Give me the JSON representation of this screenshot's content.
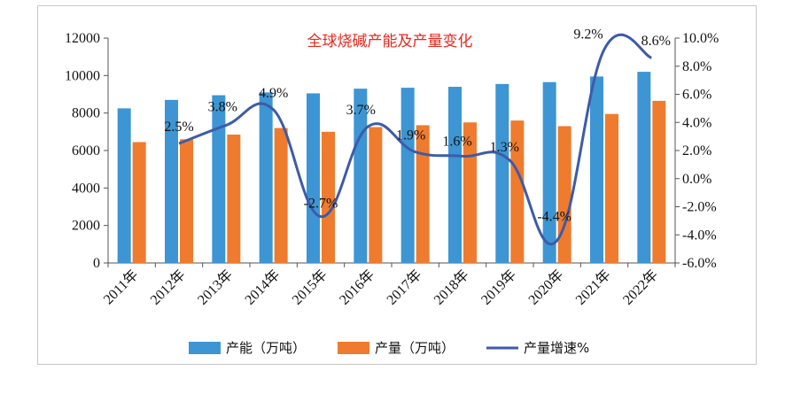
{
  "chart_data": {
    "type": "bar",
    "title": "全球烧碱产能及产量变化",
    "categories": [
      "2011年",
      "2012年",
      "2013年",
      "2014年",
      "2015年",
      "2016年",
      "2017年",
      "2018年",
      "2019年",
      "2020年",
      "2021年",
      "2022年"
    ],
    "series": [
      {
        "name": "产能（万吨）",
        "type": "bar",
        "axis": "left",
        "color": "#3d95d3",
        "values": [
          8250,
          8700,
          8950,
          9100,
          9050,
          9300,
          9350,
          9400,
          9550,
          9650,
          9950,
          10200
        ]
      },
      {
        "name": "产量（万吨）",
        "type": "bar",
        "axis": "left",
        "color": "#ef7b2e",
        "values": [
          6450,
          6600,
          6850,
          7200,
          7000,
          7250,
          7350,
          7500,
          7600,
          7300,
          7950,
          8650
        ]
      },
      {
        "name": "产量增速%",
        "type": "line",
        "axis": "right",
        "color": "#3d5ba8",
        "values": [
          null,
          2.5,
          3.8,
          4.9,
          -2.7,
          3.7,
          1.9,
          1.6,
          1.3,
          -4.4,
          9.2,
          8.6
        ],
        "labels": [
          "",
          "2.5%",
          "3.8%",
          "4.9%",
          "-2.7%",
          "3.7%",
          "1.9%",
          "1.6%",
          "1.3%",
          "-4.4%",
          "9.2%",
          "8.6%"
        ]
      }
    ],
    "y_left": {
      "min": 0,
      "max": 12000,
      "ticks": [
        "0",
        "2000",
        "4000",
        "6000",
        "8000",
        "10000",
        "12000"
      ]
    },
    "y_right": {
      "min": -6.0,
      "max": 10.0,
      "ticks": [
        "-6.0%",
        "-4.0%",
        "-2.0%",
        "0.0%",
        "2.0%",
        "4.0%",
        "6.0%",
        "8.0%",
        "10.0%"
      ]
    },
    "legend": {
      "position": "bottom"
    },
    "grid": false
  }
}
